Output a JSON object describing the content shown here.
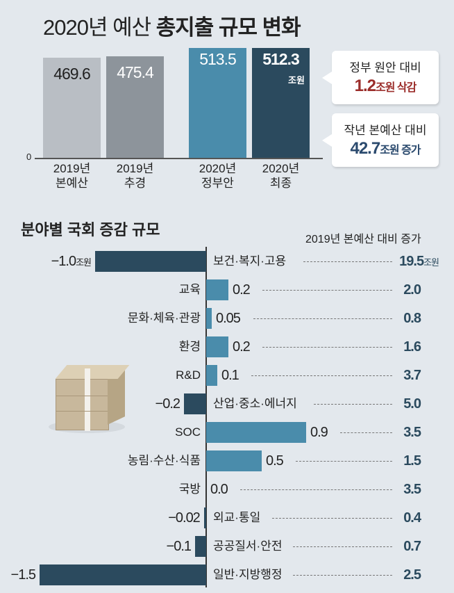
{
  "top_title": {
    "normal": "2020년 예산 ",
    "bold": "총지출 규모 변화"
  },
  "chart_data": [
    {
      "type": "bar",
      "title": "2020년 예산 총지출 규모 변화",
      "unit": "조원",
      "baseline_label": "0",
      "categories": [
        [
          "2019년",
          "본예산"
        ],
        [
          "2019년",
          "추경"
        ],
        [
          "2020년",
          "정부안"
        ],
        [
          "2020년",
          "최종"
        ]
      ],
      "values": [
        469.6,
        475.4,
        513.5,
        512.3
      ],
      "value_labels": [
        "469.6",
        "475.4",
        "513.5",
        "512.3"
      ],
      "colors": [
        "#b9bec4",
        "#8d949b",
        "#4a8cab",
        "#2b4a5e"
      ],
      "label_colors": [
        "#222222",
        "#ffffff",
        "#ffffff",
        "#ffffff"
      ],
      "callouts": [
        {
          "line1": "정부 원안 대비",
          "value": "1.2",
          "rest": "조원 삭감",
          "color": "#9b2d2a"
        },
        {
          "line1": "작년 본예산 대비",
          "value": "42.7",
          "rest": "조원 증가",
          "color": "#2b4a6e"
        }
      ]
    },
    {
      "type": "bar",
      "orientation": "horizontal",
      "title": "분야별 국회 증감 규모",
      "right_header": "2019년 본예산 대비 증가",
      "unit": "조원",
      "categories": [
        "보건·복지·고용",
        "교육",
        "문화·체육·관광",
        "환경",
        "R&D",
        "산업·중소·에너지",
        "SOC",
        "농림·수산·식품",
        "국방",
        "외교·통일",
        "공공질서·안전",
        "일반·지방행정"
      ],
      "values": [
        -1.0,
        0.2,
        0.05,
        0.2,
        0.1,
        -0.2,
        0.9,
        0.5,
        0.0,
        -0.02,
        -0.1,
        -1.5
      ],
      "value_labels": [
        "−1.0",
        "0.2",
        "0.05",
        "0.2",
        "0.1",
        "−0.2",
        "0.9",
        "0.5",
        "0.0",
        "−0.02",
        "−0.1",
        "−1.5"
      ],
      "increase_vs_2019": [
        "19.5",
        "2.0",
        "0.8",
        "1.6",
        "3.7",
        "5.0",
        "3.5",
        "1.5",
        "3.5",
        "0.4",
        "0.7",
        "2.5"
      ],
      "positive_color": "#4a8cab",
      "negative_color": "#2b4a5e"
    }
  ]
}
